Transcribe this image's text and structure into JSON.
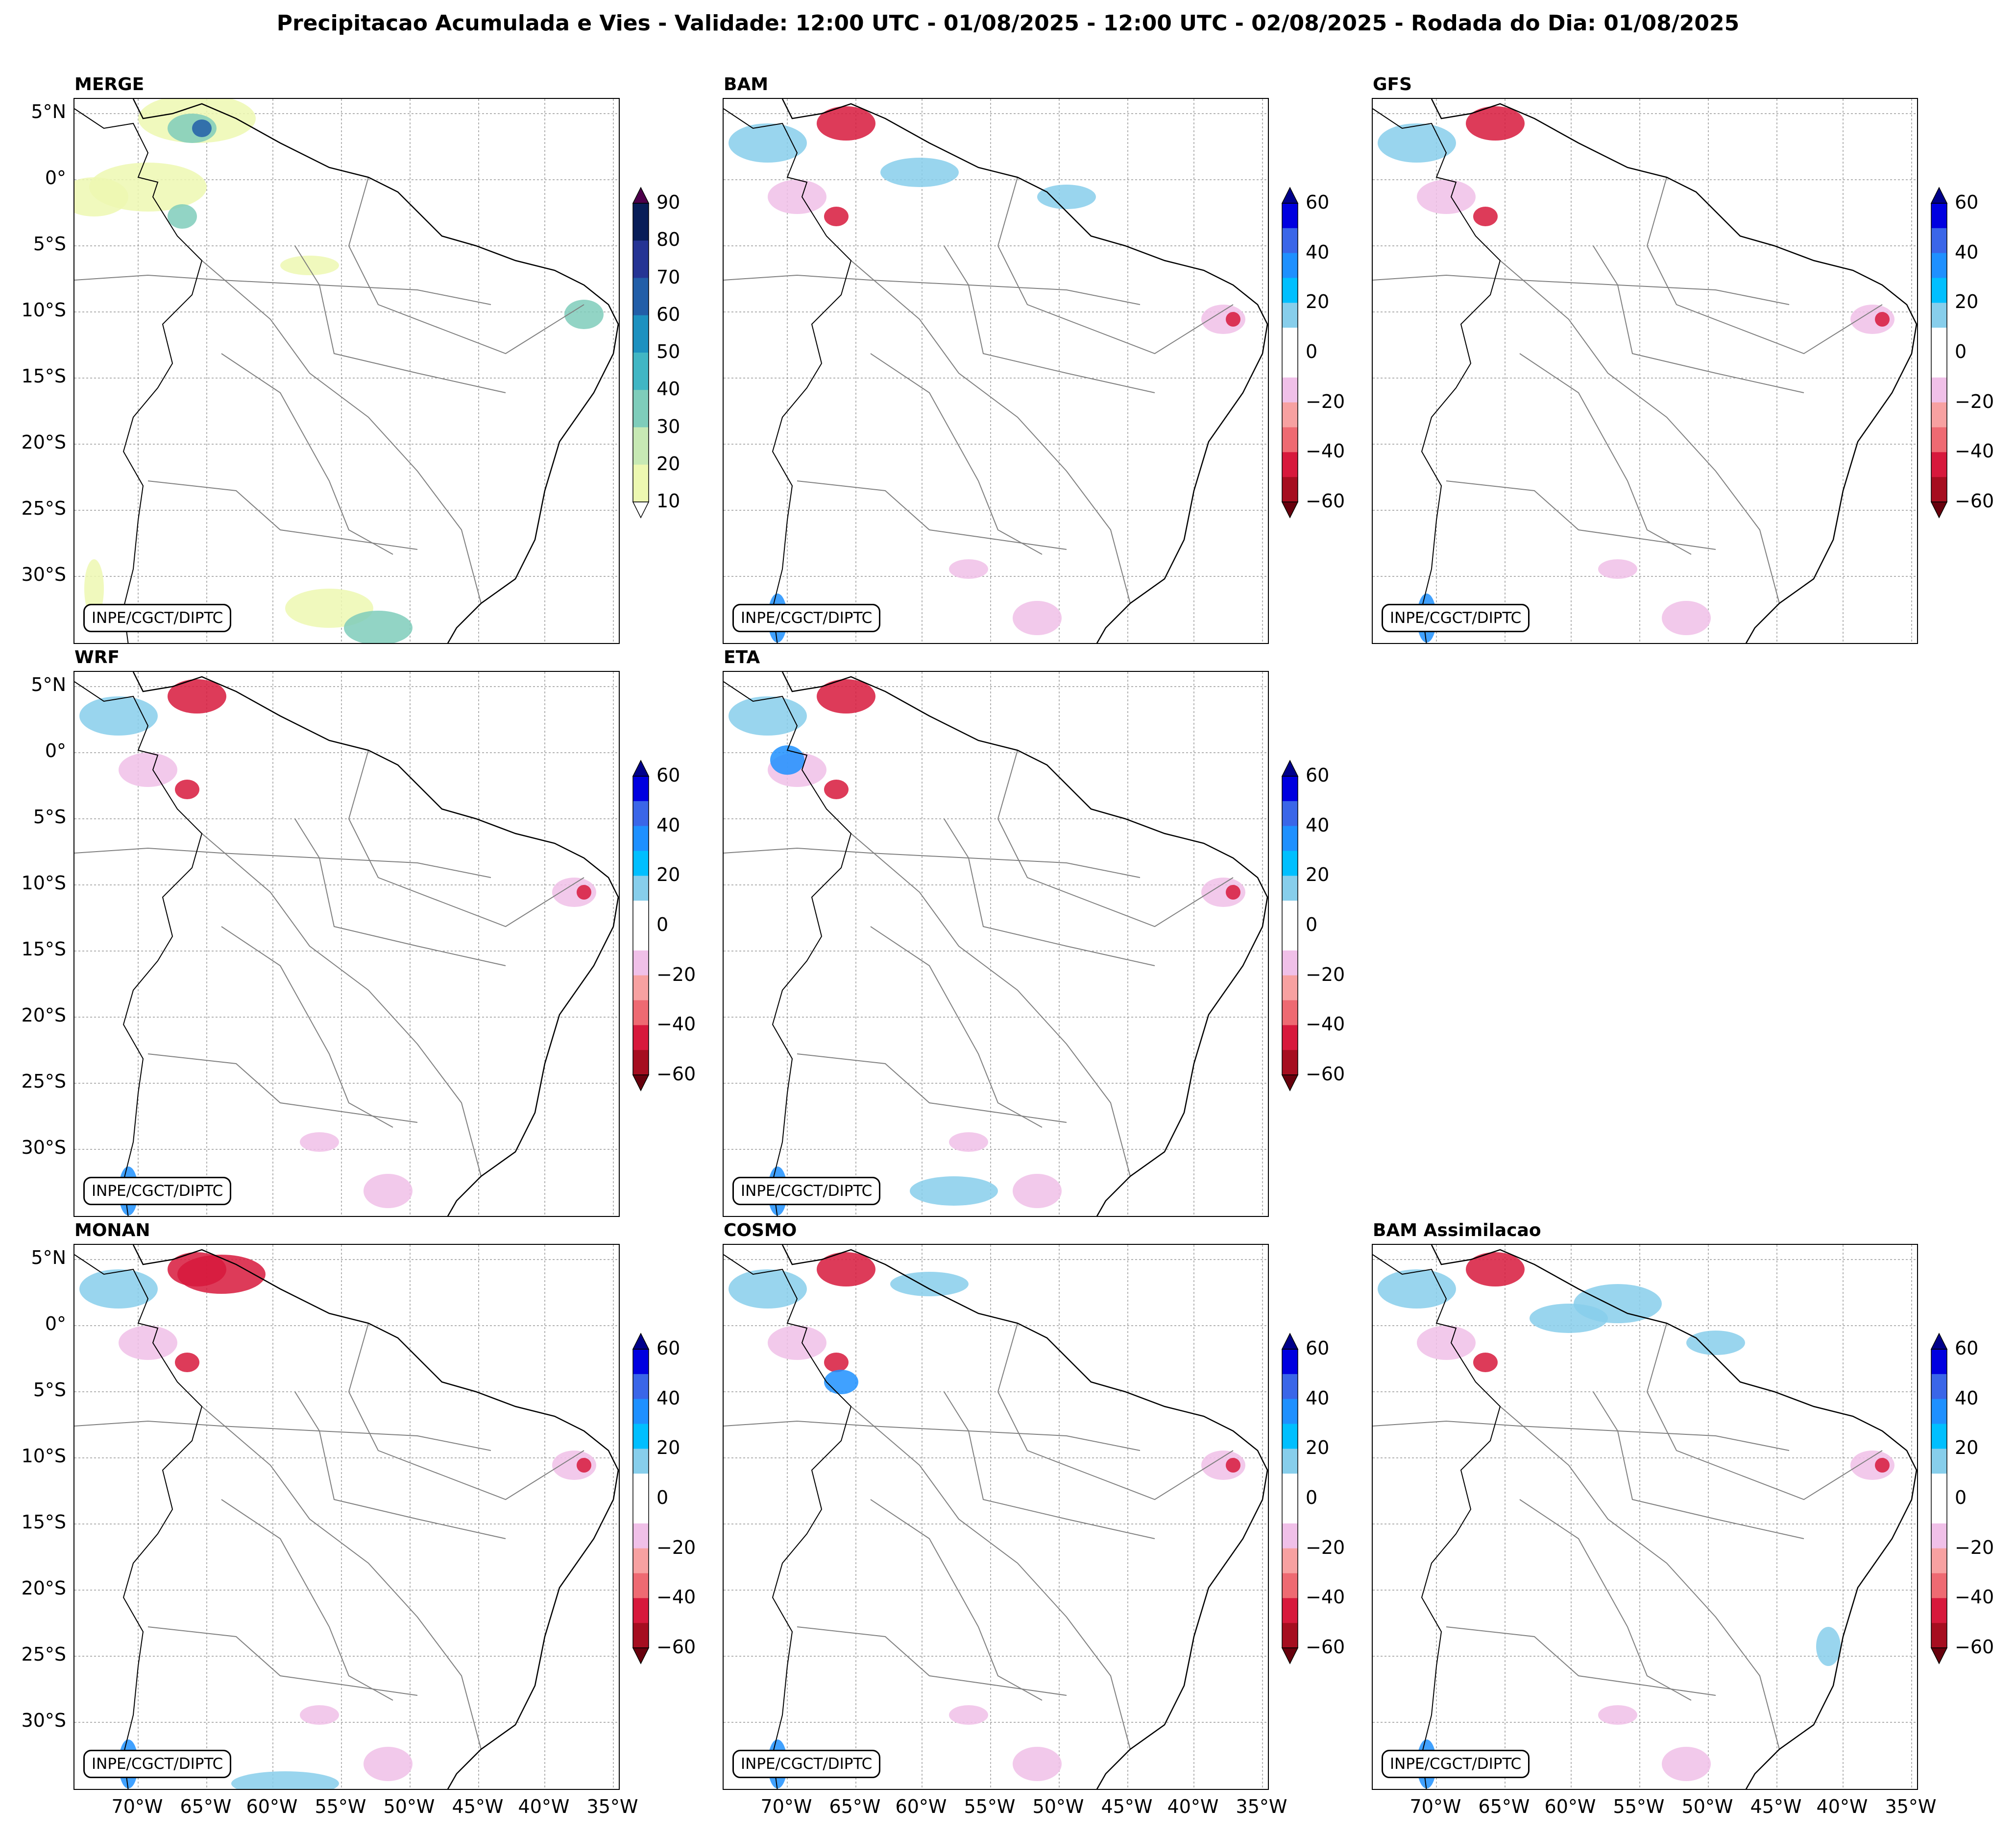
{
  "title": "Precipitacao Acumulada e Vies - Validade: 12:00 UTC - 01/08/2025 - 12:00 UTC - 02/08/2025 - Rodada do Dia: 01/08/2025",
  "credit": "INPE/CGCT/DIPTC",
  "lat_labels": [
    "5°N",
    "0°",
    "5°S",
    "10°S",
    "15°S",
    "20°S",
    "25°S",
    "30°S"
  ],
  "lon_labels": [
    "70°W",
    "65°W",
    "60°W",
    "55°W",
    "50°W",
    "45°W",
    "40°W",
    "35°W"
  ],
  "panels": [
    {
      "name": "MERGE",
      "type": "precip"
    },
    {
      "name": "BAM",
      "type": "bias"
    },
    {
      "name": "GFS",
      "type": "bias"
    },
    {
      "name": "WRF",
      "type": "bias"
    },
    {
      "name": "ETA",
      "type": "bias"
    },
    {
      "name": "MONAN",
      "type": "bias"
    },
    {
      "name": "COSMO",
      "type": "bias"
    },
    {
      "name": "BAM Assimilacao",
      "type": "bias"
    }
  ],
  "precip_colorbar": {
    "labels": [
      "90",
      "80",
      "70",
      "60",
      "50",
      "40",
      "30",
      "20",
      "10"
    ],
    "colors": [
      "#081d58",
      "#253494",
      "#225ea8",
      "#1d91c0",
      "#41b6c4",
      "#7fcdbb",
      "#c7e9b4",
      "#edf8b1"
    ]
  },
  "bias_colorbar": {
    "labels": [
      "60",
      "40",
      "20",
      "0",
      "−20",
      "−40",
      "−60"
    ],
    "colors": [
      "#0000e0",
      "#3a66e8",
      "#1e90ff",
      "#00bfff",
      "#87ceeb",
      "#ffffff",
      "#ffffff",
      "#f0c0e8",
      "#f7a1a1",
      "#ee6a72",
      "#d7193c",
      "#a60e20"
    ]
  },
  "map_colors": {
    "precip_light": "#edf8b1",
    "precip_mid": "#7fcdbb",
    "precip_dark": "#225ea8",
    "bias_pos": "#87ceeb",
    "bias_pos_strong": "#1e90ff",
    "bias_neg": "#f0c0e8",
    "bias_neg_strong": "#d7193c"
  }
}
